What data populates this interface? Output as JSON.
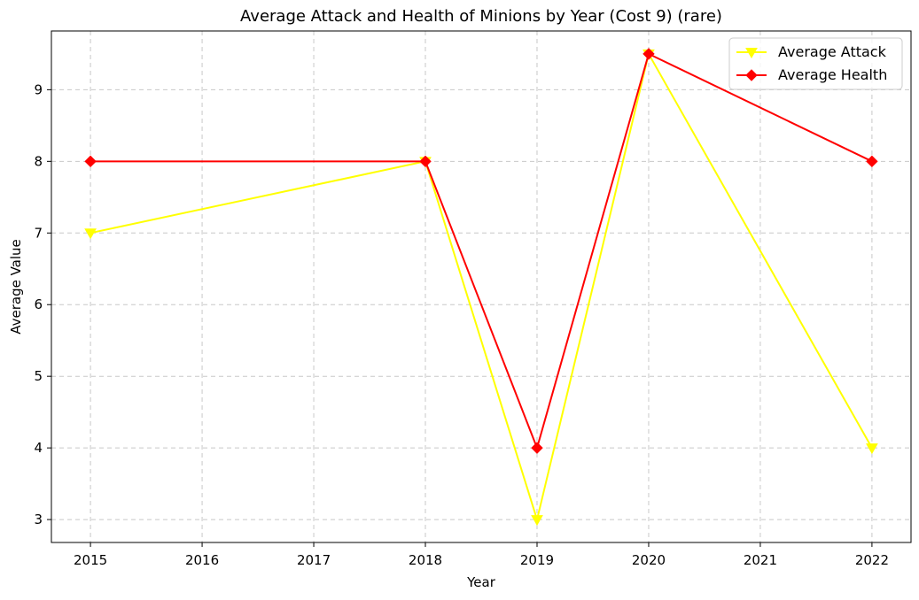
{
  "chart_data": {
    "type": "line",
    "title": "Average Attack and Health of Minions by Year (Cost 9) (rare)",
    "xlabel": "Year",
    "ylabel": "Average Value",
    "x_ticks": [
      2015,
      2016,
      2017,
      2018,
      2019,
      2020,
      2021,
      2022
    ],
    "y_ticks": [
      3,
      4,
      5,
      6,
      7,
      8,
      9
    ],
    "xlim": [
      2014.65,
      2022.35
    ],
    "ylim": [
      2.68,
      9.82
    ],
    "grid": true,
    "grid_style": "dashed",
    "legend_position": "top-right",
    "series": [
      {
        "name": "Average Attack",
        "color": "#ffff00",
        "marker": "triangle-down",
        "x": [
          2015,
          2018,
          2019,
          2020,
          2022
        ],
        "y": [
          7,
          8,
          3,
          9.5,
          4
        ]
      },
      {
        "name": "Average Health",
        "color": "#ff0000",
        "marker": "diamond",
        "x": [
          2015,
          2018,
          2019,
          2020,
          2022
        ],
        "y": [
          8,
          8,
          4,
          9.5,
          8
        ]
      }
    ]
  }
}
